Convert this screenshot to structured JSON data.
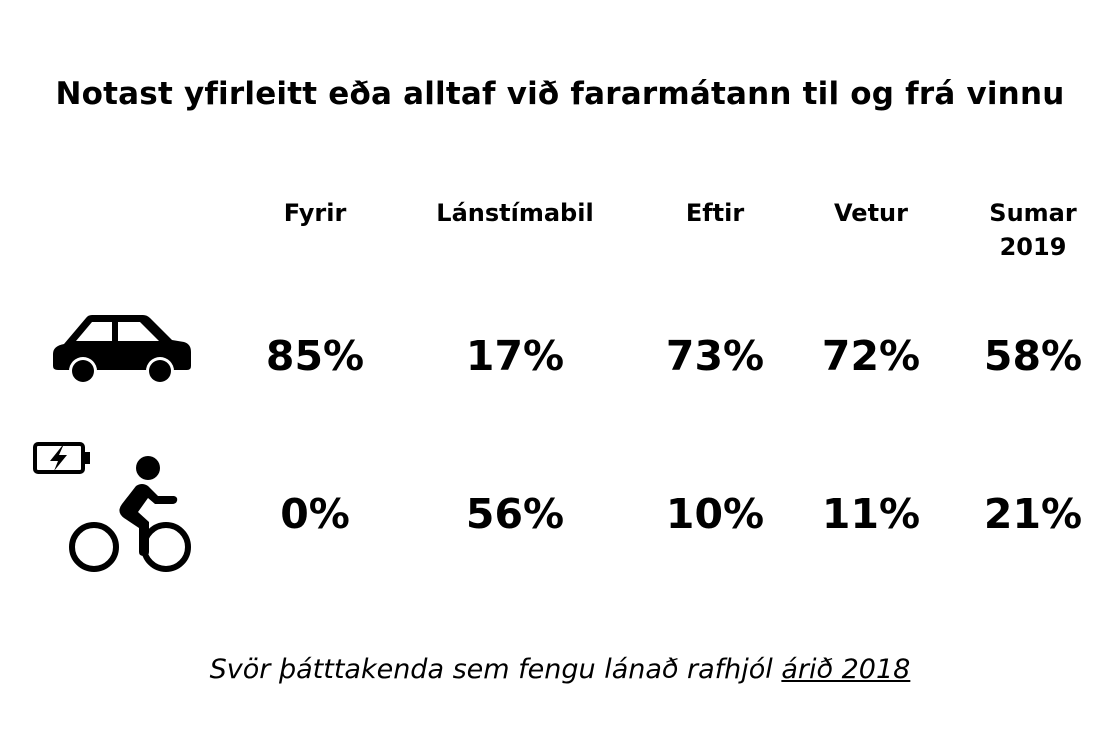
{
  "chart_data": {
    "type": "table",
    "title": "Notast yfirleitt eða alltaf við fararmátann til og frá vinnu",
    "columns": [
      "Fyrir",
      "Lánstímabil",
      "Eftir",
      "Vetur",
      "Sumar\n2019"
    ],
    "rows": [
      {
        "icon": "car-icon",
        "values": [
          "85%",
          "17%",
          "73%",
          "72%",
          "58%"
        ]
      },
      {
        "icon": "ebike-cyclist-icon",
        "values": [
          "0%",
          "56%",
          "10%",
          "11%",
          "21%"
        ]
      }
    ],
    "footnote": {
      "text": "Svör þátttakenda sem fengu lánað rafhjól ",
      "underlined": "árið 2018"
    }
  }
}
